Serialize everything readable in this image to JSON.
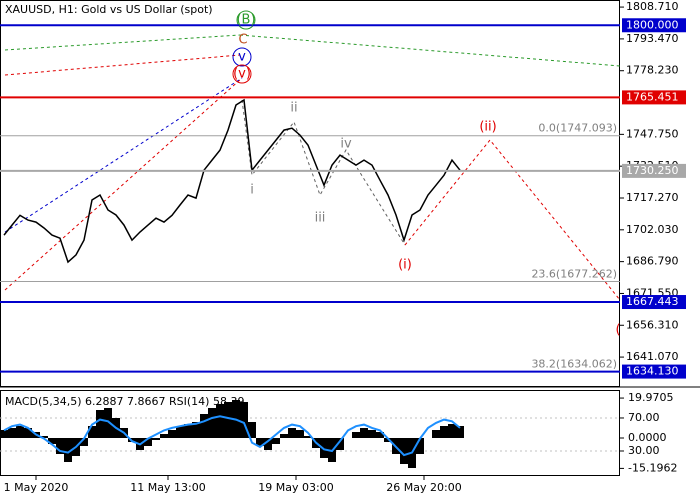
{
  "chart_data": [
    {
      "type": "line",
      "title": "XAUUSD, H1:  Gold vs US Dollar (spot)",
      "x": [
        0,
        1,
        2,
        3,
        4,
        5,
        6,
        7,
        8,
        9,
        10,
        11,
        12,
        13,
        14,
        15,
        16,
        17,
        18,
        19,
        20,
        21,
        22,
        23,
        24,
        25,
        26,
        27,
        28,
        29,
        30,
        31,
        32,
        33,
        34,
        35,
        36,
        37,
        38,
        39,
        40,
        41,
        42,
        43,
        44,
        45,
        46,
        47,
        48,
        49,
        50,
        51,
        52,
        53,
        54,
        55,
        56,
        57
      ],
      "values": [
        1699.5,
        1704.3,
        1709.0,
        1706.7,
        1705.7,
        1702.9,
        1699.5,
        1698.0,
        1686.6,
        1690.0,
        1697.1,
        1716.3,
        1718.7,
        1711.5,
        1709.1,
        1704.3,
        1697.1,
        1701.0,
        1704.3,
        1707.6,
        1705.7,
        1709.0,
        1713.9,
        1718.7,
        1717.2,
        1730.6,
        1735.4,
        1740.2,
        1749.8,
        1761.8,
        1764.2,
        1730.6,
        1735.4,
        1740.2,
        1745.0,
        1749.8,
        1750.7,
        1747.4,
        1742.6,
        1733.0,
        1723.4,
        1733.0,
        1737.8,
        1735.4,
        1733.0,
        1735.4,
        1733.0,
        1725.8,
        1718.7,
        1709.1,
        1697.1,
        1709.1,
        1711.5,
        1718.7,
        1723.4,
        1728.2,
        1735.4,
        1730.6
      ],
      "color": "#000000",
      "xlim": [
        -0.5,
        77
      ],
      "xticks": [
        {
          "value": 4,
          "label": "1 May 2020"
        },
        {
          "value": 20.5,
          "label": "11 May 13:00"
        },
        {
          "value": 36.5,
          "label": "19 May 03:00"
        },
        {
          "value": 52.5,
          "label": "26 May 20:00"
        }
      ],
      "ylim": [
        1627.7,
        1812.1
      ],
      "yticks": [
        {
          "value": 1808.71,
          "label": "1808.710"
        },
        {
          "value": 1793.47,
          "label": "1793.470"
        },
        {
          "value": 1778.23,
          "label": "1778.230"
        },
        {
          "value": 1747.75,
          "label": "1747.750"
        },
        {
          "value": 1732.51,
          "label": "1732.510"
        },
        {
          "value": 1717.27,
          "label": "1717.270"
        },
        {
          "value": 1702.03,
          "label": "1702.030"
        },
        {
          "value": 1686.79,
          "label": "1686.790"
        },
        {
          "value": 1671.55,
          "label": "1671.550"
        },
        {
          "value": 1656.31,
          "label": "1656.310"
        },
        {
          "value": 1641.07,
          "label": "1641.070"
        }
      ],
      "price_levels": [
        {
          "value": 1800,
          "label": "1800.000",
          "color": "#0000cc"
        },
        {
          "value": 1765.451,
          "label": "1765.451",
          "color": "#e00000"
        },
        {
          "value": 1730.25,
          "label": "1730.250",
          "color": "#a8a8a8"
        },
        {
          "value": 1667.443,
          "label": "1667.443",
          "color": "#0000cc"
        },
        {
          "value": 1634.13,
          "label": "1634.130",
          "color": "#0000cc"
        }
      ],
      "fib_levels": [
        {
          "value": 1747.093,
          "label": "0.0(1747.093)"
        },
        {
          "value": 1677.262,
          "label": "23.6(1677.262)"
        },
        {
          "value": 1634.062,
          "label": "38.2(1634.062)"
        }
      ],
      "annotations": [
        {
          "text": "(B)",
          "color": "#2a9a2a"
        },
        {
          "text": "C",
          "color": "#c05020"
        },
        {
          "text": "v",
          "color": "#0000cc"
        },
        {
          "text": "(v)",
          "color": "#e00000"
        },
        {
          "text": "ii",
          "color": "#808080"
        },
        {
          "text": "iv",
          "color": "#808080"
        },
        {
          "text": "i",
          "color": "#808080"
        },
        {
          "text": "iii",
          "color": "#808080"
        },
        {
          "text": "(i)",
          "color": "#e00000"
        },
        {
          "text": "(ii)",
          "color": "#e00000"
        },
        {
          "text": "(",
          "color": "#e00000"
        }
      ]
    },
    {
      "type": "macd",
      "title": "MACD(5,34,5) 6.2887 7.8667 RSI(14) 58.39",
      "macd_values": [
        4,
        5,
        6,
        5,
        3,
        1,
        -3,
        -8,
        -12,
        -9,
        -4,
        6,
        14,
        15,
        10,
        5,
        -2,
        -6,
        -4,
        -1,
        2,
        4,
        6,
        7,
        8,
        12,
        15,
        17,
        18,
        19,
        18,
        8,
        -4,
        -6,
        -3,
        2,
        5,
        4,
        1,
        -5,
        -10,
        -12,
        -6,
        0,
        3,
        5,
        4,
        3,
        -2,
        -8,
        -13,
        -15,
        -8,
        0,
        4,
        6,
        7,
        6
      ],
      "macd_color": "#000000",
      "rsi_values": [
        55,
        60,
        62,
        58,
        50,
        45,
        38,
        30,
        28,
        35,
        45,
        62,
        68,
        66,
        58,
        52,
        42,
        38,
        45,
        50,
        55,
        58,
        60,
        62,
        63,
        66,
        70,
        72,
        70,
        68,
        64,
        40,
        35,
        42,
        50,
        58,
        62,
        60,
        52,
        40,
        32,
        30,
        42,
        55,
        60,
        62,
        58,
        55,
        45,
        35,
        25,
        28,
        45,
        58,
        64,
        68,
        66,
        58
      ],
      "rsi_color": "#1e90ff",
      "ylim": [
        -18.5,
        24.0
      ],
      "yticks": [
        {
          "value": 19.9705,
          "label": "19.9705"
        },
        {
          "value": 0,
          "label": "0.0000"
        },
        {
          "value": -15.1962,
          "label": "-15.1962"
        }
      ],
      "y2lim": [
        0.9,
        103.9
      ],
      "y2ticks": [
        {
          "value": 70,
          "label": "70.00"
        },
        {
          "value": 30,
          "label": "30.00"
        }
      ]
    }
  ]
}
